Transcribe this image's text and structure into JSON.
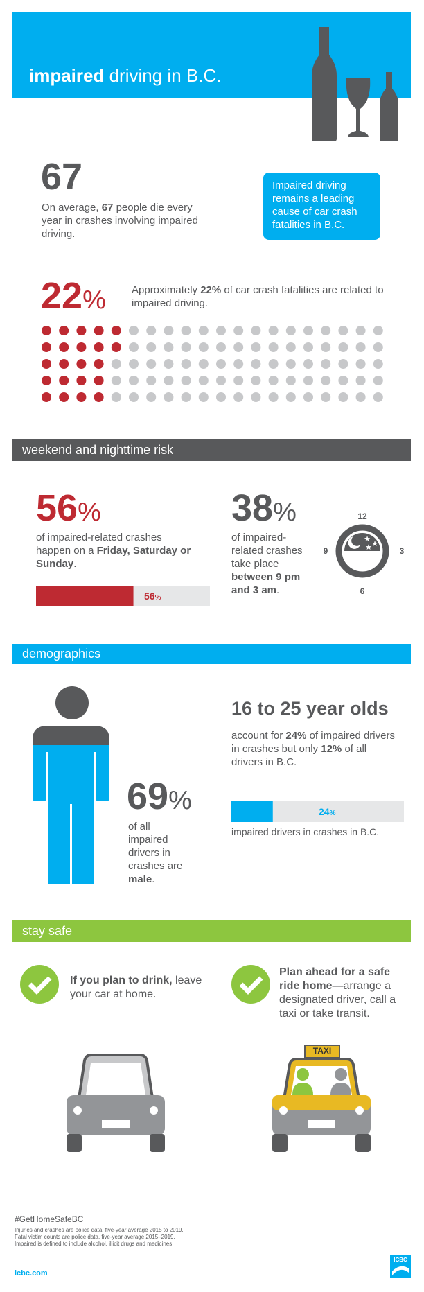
{
  "header": {
    "title": [
      "impaired",
      " driving in B.C."
    ]
  },
  "intro": {
    "stat": "67",
    "text": [
      "On average, ",
      "67",
      " people die every year in crashes involving impaired driving."
    ],
    "callout": "Impaired driving remains a leading cause of car crash fatalities in B.C."
  },
  "share": {
    "stat": [
      "22",
      "%"
    ],
    "text": [
      "Approximately ",
      "22%",
      " of car crash fatalities are related to impaired driving."
    ]
  },
  "weekend": {
    "heading": "weekend and nighttime risk",
    "days": {
      "stat": [
        "56",
        "%"
      ],
      "text": [
        "of impaired-related crashes happen on a ",
        "Friday, Saturday or Sunday",
        "."
      ],
      "bar": {
        "value": 56,
        "label": [
          "56",
          "%"
        ]
      }
    },
    "night": {
      "stat": [
        "38",
        "%"
      ],
      "text": [
        "of impaired-related crashes take place ",
        "between 9 pm and 3 am",
        "."
      ],
      "clock": [
        "12",
        "3",
        "6",
        "9"
      ]
    }
  },
  "demographics": {
    "heading": "demographics",
    "male": {
      "stat": [
        "69",
        "%"
      ],
      "text": [
        "of all impaired drivers in crashes are ",
        "male",
        "."
      ]
    },
    "youth": {
      "title": "16 to 25 year olds",
      "text": [
        "account for ",
        "24%",
        " of impaired drivers in crashes but only ",
        "12%",
        " of all drivers in B.C."
      ],
      "bar": {
        "value": 24,
        "label": [
          "24",
          "%"
        ]
      },
      "caption": "impaired drivers in crashes in B.C."
    }
  },
  "stay_safe": {
    "heading": "stay safe",
    "tips": [
      [
        "If you plan to drink,",
        " leave your car at home."
      ],
      [
        "Plan ahead for a safe ride home",
        "—arrange a designated driver, call a taxi or take transit."
      ]
    ],
    "taxi_sign": "TAXI"
  },
  "footer": {
    "hashtag": "#GetHomeSafeBC",
    "notes": [
      "Injuries and crashes are police data, five-year average 2015 to 2019.",
      "Fatal victim counts are police data, five-year average 2015–2019.",
      "Impaired is defined to include alcohol, illicit drugs and medicines."
    ],
    "url": "icbc.com",
    "logo": "ICBC"
  }
}
